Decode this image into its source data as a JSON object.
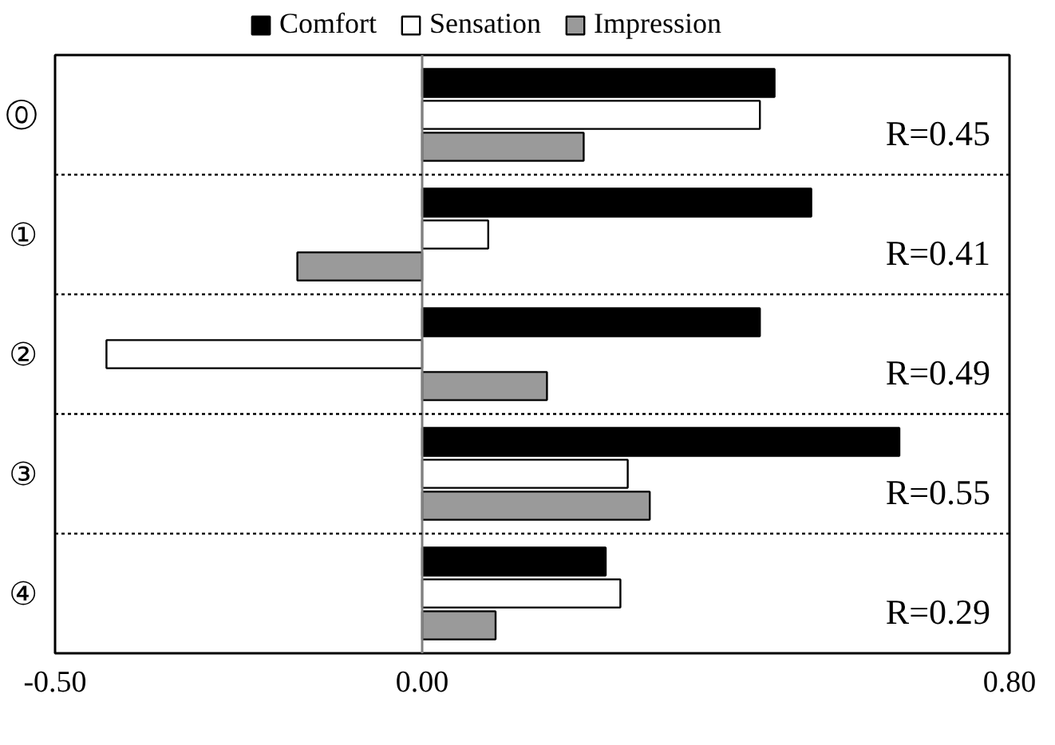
{
  "chart_data": {
    "type": "bar",
    "orientation": "horizontal",
    "categories": [
      "⓪",
      "①",
      "②",
      "③",
      "④"
    ],
    "series": [
      {
        "name": "Comfort",
        "color": "#000000",
        "values": [
          0.48,
          0.53,
          0.46,
          0.65,
          0.25
        ]
      },
      {
        "name": "Sensation",
        "color": "#ffffff",
        "values": [
          0.46,
          0.09,
          -0.43,
          0.28,
          0.27
        ]
      },
      {
        "name": "Impression",
        "color": "#9a9a9a",
        "values": [
          0.22,
          -0.17,
          0.17,
          0.31,
          0.1
        ]
      }
    ],
    "xlim": [
      -0.5,
      0.8
    ],
    "xticks": [
      {
        "value": -0.5,
        "label": "-0.50"
      },
      {
        "value": 0,
        "label": "0.00"
      },
      {
        "value": 0.8,
        "label": "0.80"
      }
    ],
    "annotations": [
      "R=0.45",
      "R=0.41",
      "R=0.49",
      "R=0.55",
      "R=0.29"
    ],
    "legend": "top",
    "grid": false
  }
}
